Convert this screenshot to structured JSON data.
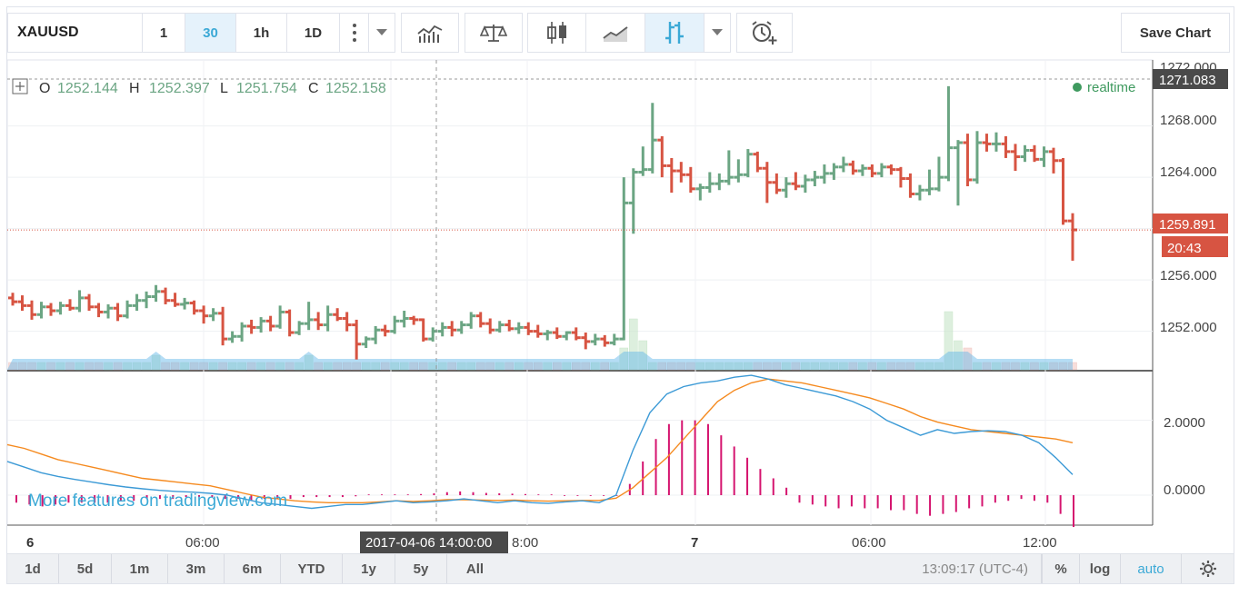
{
  "toolbar": {
    "symbol": "XAUUSD",
    "intervals": [
      {
        "label": "1",
        "active": false
      },
      {
        "label": "30",
        "active": true
      },
      {
        "label": "1h",
        "active": false
      },
      {
        "label": "1D",
        "active": false
      }
    ],
    "icons": [
      "more-vertical-icon",
      "dropdown-arrow-icon",
      "indicators-icon",
      "compare-icon",
      "candles-icon",
      "line-icon",
      "bars-icon",
      "dropdown-arrow-icon",
      "alert-icon"
    ],
    "save_label": "Save Chart"
  },
  "legend": {
    "o_label": "O",
    "o": "1252.144",
    "h_label": "H",
    "h": "1252.397",
    "l_label": "L",
    "l": "1251.754",
    "c_label": "C",
    "c": "1252.158",
    "realtime": "realtime"
  },
  "price_axis": {
    "ticks": [
      "1272.000",
      "1268.000",
      "1264.000",
      "1256.000",
      "1252.000"
    ],
    "max_marker": "1271.083",
    "last_price": "1259.891",
    "countdown": "20:43"
  },
  "macd_axis": {
    "ticks": [
      "2.0000",
      "0.0000"
    ]
  },
  "time_axis": {
    "labels": [
      "6",
      "06:00",
      "8:00",
      "7",
      "06:00",
      "12:00"
    ],
    "crosshair_label": "2017-04-06 14:00:00"
  },
  "watermark": "More features on tradingview.com",
  "bottom_bar": {
    "ranges": [
      "1d",
      "5d",
      "1m",
      "3m",
      "6m",
      "YTD",
      "1y",
      "5y",
      "All"
    ],
    "clock": "13:09:17 (UTC-4)",
    "percent": "%",
    "log": "log",
    "auto": "auto"
  },
  "colors": {
    "up": "#6ba583",
    "down": "#d75442",
    "macd_line": "#3c9ad6",
    "signal_line": "#f58a1f",
    "histogram": "#d5146f",
    "last_price_bg": "#d75442",
    "max_marker_bg": "#4a4a4a"
  },
  "chart_data": {
    "type": "ohlc-bar",
    "symbol": "XAUUSD",
    "interval": "30",
    "ylim": [
      1249,
      1273
    ],
    "bars": [
      [
        1254.6,
        1255.0,
        1254.0,
        1254.3
      ],
      [
        1254.3,
        1254.8,
        1253.6,
        1254.0
      ],
      [
        1254.0,
        1254.4,
        1252.9,
        1253.3
      ],
      [
        1253.3,
        1254.3,
        1253.0,
        1253.9
      ],
      [
        1253.9,
        1254.2,
        1253.2,
        1253.6
      ],
      [
        1253.6,
        1254.3,
        1253.3,
        1254.0
      ],
      [
        1254.0,
        1254.5,
        1253.6,
        1253.8
      ],
      [
        1253.8,
        1255.2,
        1253.5,
        1254.6
      ],
      [
        1254.6,
        1254.9,
        1253.6,
        1253.9
      ],
      [
        1253.9,
        1254.2,
        1253.1,
        1253.5
      ],
      [
        1253.5,
        1254.1,
        1253.0,
        1253.8
      ],
      [
        1253.8,
        1254.2,
        1252.8,
        1253.2
      ],
      [
        1253.2,
        1254.4,
        1253.0,
        1254.0
      ],
      [
        1254.0,
        1254.9,
        1253.6,
        1254.4
      ],
      [
        1254.4,
        1255.1,
        1253.8,
        1254.7
      ],
      [
        1254.7,
        1255.6,
        1254.3,
        1255.1
      ],
      [
        1255.1,
        1255.4,
        1254.1,
        1254.4
      ],
      [
        1254.4,
        1255.0,
        1253.9,
        1254.1
      ],
      [
        1254.1,
        1254.6,
        1253.7,
        1254.2
      ],
      [
        1254.2,
        1254.4,
        1253.3,
        1253.6
      ],
      [
        1253.6,
        1254.0,
        1252.6,
        1253.2
      ],
      [
        1253.2,
        1253.8,
        1252.8,
        1253.4
      ],
      [
        1253.4,
        1253.9,
        1250.9,
        1251.4
      ],
      [
        1251.4,
        1252.0,
        1251.1,
        1251.6
      ],
      [
        1251.6,
        1252.7,
        1251.2,
        1252.4
      ],
      [
        1252.4,
        1252.9,
        1251.8,
        1252.3
      ],
      [
        1252.3,
        1253.1,
        1251.9,
        1252.8
      ],
      [
        1252.8,
        1253.2,
        1252.0,
        1252.4
      ],
      [
        1252.4,
        1254.0,
        1252.2,
        1253.5
      ],
      [
        1253.5,
        1253.7,
        1251.6,
        1251.9
      ],
      [
        1251.9,
        1252.8,
        1251.7,
        1252.6
      ],
      [
        1252.6,
        1254.3,
        1252.1,
        1252.9
      ],
      [
        1252.9,
        1253.5,
        1252.1,
        1252.5
      ],
      [
        1252.5,
        1254.0,
        1252.0,
        1253.3
      ],
      [
        1253.3,
        1253.8,
        1252.8,
        1253.0
      ],
      [
        1253.0,
        1253.5,
        1252.0,
        1252.5
      ],
      [
        1252.5,
        1252.9,
        1249.8,
        1251.0
      ],
      [
        1251.0,
        1251.6,
        1250.7,
        1251.4
      ],
      [
        1251.4,
        1252.4,
        1251.0,
        1252.1
      ],
      [
        1252.1,
        1252.5,
        1251.6,
        1252.0
      ],
      [
        1252.0,
        1253.2,
        1251.8,
        1252.8
      ],
      [
        1252.8,
        1253.6,
        1252.3,
        1253.0
      ],
      [
        1253.0,
        1253.2,
        1252.5,
        1252.9
      ],
      [
        1252.9,
        1253.0,
        1251.2,
        1251.4
      ],
      [
        1251.4,
        1252.3,
        1251.2,
        1252.0
      ],
      [
        1252.0,
        1252.7,
        1251.6,
        1252.3
      ],
      [
        1252.3,
        1252.8,
        1251.6,
        1252.1
      ],
      [
        1252.1,
        1252.8,
        1251.8,
        1252.5
      ],
      [
        1252.5,
        1253.5,
        1252.2,
        1253.2
      ],
      [
        1253.2,
        1253.5,
        1252.3,
        1252.6
      ],
      [
        1252.6,
        1253.0,
        1251.8,
        1252.1
      ],
      [
        1252.1,
        1252.8,
        1251.9,
        1252.5
      ],
      [
        1252.5,
        1252.9,
        1252.0,
        1252.2
      ],
      [
        1252.2,
        1252.7,
        1251.8,
        1252.3
      ],
      [
        1252.3,
        1252.7,
        1251.7,
        1252.0
      ],
      [
        1252.0,
        1252.5,
        1251.5,
        1251.8
      ],
      [
        1251.8,
        1252.1,
        1251.3,
        1251.9
      ],
      [
        1251.9,
        1252.3,
        1251.4,
        1251.6
      ],
      [
        1251.6,
        1252.0,
        1251.3,
        1251.9
      ],
      [
        1251.9,
        1252.3,
        1251.3,
        1251.5
      ],
      [
        1251.5,
        1251.9,
        1250.6,
        1251.2
      ],
      [
        1251.2,
        1251.8,
        1250.9,
        1251.4
      ],
      [
        1251.4,
        1251.7,
        1250.8,
        1251.1
      ],
      [
        1251.1,
        1251.8,
        1250.9,
        1251.4
      ],
      [
        1251.4,
        1264.0,
        1251.3,
        1262.0
      ],
      [
        1262.0,
        1264.7,
        1259.6,
        1264.4
      ],
      [
        1264.4,
        1266.4,
        1264.1,
        1264.6
      ],
      [
        1264.6,
        1269.8,
        1264.3,
        1266.9
      ],
      [
        1266.9,
        1267.2,
        1264.0,
        1264.9
      ],
      [
        1264.9,
        1265.5,
        1262.8,
        1264.5
      ],
      [
        1264.5,
        1265.2,
        1263.6,
        1264.2
      ],
      [
        1264.2,
        1264.8,
        1262.8,
        1263.1
      ],
      [
        1263.1,
        1263.5,
        1262.2,
        1263.2
      ],
      [
        1263.2,
        1264.4,
        1262.8,
        1263.5
      ],
      [
        1263.5,
        1264.3,
        1263.0,
        1263.7
      ],
      [
        1263.7,
        1266.1,
        1263.4,
        1264.0
      ],
      [
        1264.0,
        1265.4,
        1263.6,
        1264.2
      ],
      [
        1264.2,
        1266.2,
        1264.0,
        1265.8
      ],
      [
        1265.8,
        1266.0,
        1264.4,
        1264.7
      ],
      [
        1264.7,
        1265.2,
        1262.0,
        1263.6
      ],
      [
        1263.6,
        1264.3,
        1262.7,
        1263.0
      ],
      [
        1263.0,
        1264.0,
        1262.4,
        1263.5
      ],
      [
        1263.5,
        1264.4,
        1263.0,
        1263.3
      ],
      [
        1263.3,
        1264.2,
        1262.8,
        1263.8
      ],
      [
        1263.8,
        1264.5,
        1263.3,
        1264.0
      ],
      [
        1264.0,
        1265.0,
        1263.5,
        1264.3
      ],
      [
        1264.3,
        1265.1,
        1263.8,
        1264.8
      ],
      [
        1264.8,
        1265.6,
        1264.4,
        1265.0
      ],
      [
        1265.0,
        1265.3,
        1264.2,
        1264.5
      ],
      [
        1264.5,
        1265.0,
        1264.1,
        1264.7
      ],
      [
        1264.7,
        1265.0,
        1264.0,
        1264.3
      ],
      [
        1264.3,
        1265.1,
        1264.0,
        1264.8
      ],
      [
        1264.8,
        1265.0,
        1264.2,
        1264.6
      ],
      [
        1264.6,
        1264.8,
        1263.2,
        1263.9
      ],
      [
        1263.9,
        1264.3,
        1262.4,
        1262.7
      ],
      [
        1262.7,
        1263.4,
        1262.2,
        1263.0
      ],
      [
        1263.0,
        1264.6,
        1262.6,
        1263.1
      ],
      [
        1263.1,
        1265.6,
        1262.9,
        1264.0
      ],
      [
        1264.0,
        1271.1,
        1263.7,
        1266.3
      ],
      [
        1266.3,
        1266.9,
        1261.8,
        1266.7
      ],
      [
        1266.7,
        1267.4,
        1263.3,
        1263.8
      ],
      [
        1263.8,
        1267.6,
        1263.5,
        1266.7
      ],
      [
        1266.7,
        1267.4,
        1266.0,
        1266.6
      ],
      [
        1266.6,
        1267.5,
        1266.0,
        1266.6
      ],
      [
        1266.6,
        1267.2,
        1265.5,
        1266.0
      ],
      [
        1266.0,
        1266.6,
        1264.5,
        1265.6
      ],
      [
        1265.6,
        1266.5,
        1265.2,
        1266.1
      ],
      [
        1266.1,
        1266.5,
        1265.2,
        1265.4
      ],
      [
        1265.4,
        1266.4,
        1264.8,
        1266.0
      ],
      [
        1266.0,
        1266.3,
        1264.3,
        1265.3
      ],
      [
        1265.3,
        1265.5,
        1260.3,
        1260.6
      ],
      [
        1260.6,
        1261.2,
        1257.5,
        1259.9
      ]
    ],
    "volume_scale": [
      0,
      10
    ],
    "volume": [
      1,
      1,
      1,
      1,
      1,
      1,
      1,
      1,
      1,
      1,
      1,
      1,
      1,
      1,
      1,
      2,
      1,
      1,
      1,
      1,
      1,
      1,
      1,
      1,
      1,
      1,
      1,
      1,
      1,
      1,
      1,
      2,
      1,
      1,
      1,
      1,
      1,
      1,
      1,
      1,
      1,
      1,
      1,
      1,
      1,
      1,
      1,
      1,
      1,
      1,
      1,
      1,
      1,
      1,
      1,
      1,
      1,
      1,
      1,
      1,
      1,
      1,
      1,
      1,
      3,
      7,
      4,
      1,
      1,
      1,
      1,
      1,
      1,
      1,
      1,
      1,
      1,
      1,
      1,
      1,
      1,
      1,
      1,
      1,
      1,
      1,
      1,
      1,
      1,
      1,
      1,
      1,
      1,
      1,
      1,
      1,
      1,
      1,
      8,
      4,
      3,
      1,
      1,
      1,
      1,
      1,
      1,
      1,
      1,
      1,
      1,
      1
    ],
    "macd": {
      "ylim": [
        -0.8,
        3.3
      ],
      "macd_line": [
        0.9,
        0.75,
        0.6,
        0.5,
        0.42,
        0.35,
        0.28,
        0.22,
        0.17,
        0.13,
        0.1,
        0.08,
        0.05,
        0.0,
        -0.1,
        -0.2,
        -0.25,
        -0.3,
        -0.35,
        -0.3,
        -0.25,
        -0.25,
        -0.2,
        -0.15,
        -0.2,
        -0.18,
        -0.15,
        -0.1,
        -0.15,
        -0.2,
        -0.15,
        -0.2,
        -0.22,
        -0.18,
        -0.15,
        -0.2,
        0.0,
        1.2,
        2.2,
        2.7,
        2.9,
        3.0,
        3.05,
        3.15,
        3.2,
        3.1,
        2.95,
        2.85,
        2.75,
        2.65,
        2.5,
        2.3,
        2.0,
        1.8,
        1.6,
        1.75,
        1.65,
        1.7,
        1.72,
        1.7,
        1.6,
        1.4,
        1.0,
        0.55
      ],
      "signal_line": [
        1.35,
        1.25,
        1.1,
        0.95,
        0.85,
        0.75,
        0.65,
        0.55,
        0.45,
        0.4,
        0.35,
        0.3,
        0.25,
        0.15,
        0.05,
        -0.05,
        -0.1,
        -0.15,
        -0.18,
        -0.2,
        -0.2,
        -0.2,
        -0.18,
        -0.15,
        -0.17,
        -0.15,
        -0.12,
        -0.12,
        -0.13,
        -0.14,
        -0.13,
        -0.15,
        -0.16,
        -0.15,
        -0.14,
        -0.14,
        -0.08,
        0.2,
        0.6,
        1.0,
        1.5,
        2.0,
        2.5,
        2.8,
        3.0,
        3.1,
        3.05,
        3.0,
        2.9,
        2.8,
        2.7,
        2.6,
        2.45,
        2.3,
        2.1,
        1.95,
        1.85,
        1.75,
        1.7,
        1.65,
        1.6,
        1.55,
        1.5,
        1.4
      ],
      "histogram": [
        -0.2,
        -0.25,
        -0.3,
        -0.25,
        -0.2,
        -0.2,
        -0.2,
        -0.2,
        -0.15,
        -0.15,
        -0.1,
        -0.1,
        -0.1,
        -0.05,
        -0.05,
        -0.05,
        -0.1,
        -0.1,
        -0.15,
        -0.1,
        -0.1,
        -0.1,
        -0.05,
        -0.05,
        -0.05,
        -0.05,
        -0.03,
        0.02,
        0.02,
        0.02,
        0.02,
        0.03,
        0.05,
        0.08,
        0.1,
        0.08,
        0.06,
        0.05,
        0.04,
        0.03,
        0.02,
        0.02,
        -0.02,
        -0.02,
        -0.02,
        -0.02,
        -0.02,
        0.3,
        0.9,
        1.5,
        1.9,
        2.0,
        2.0,
        1.9,
        1.6,
        1.3,
        1.0,
        0.7,
        0.45,
        0.2,
        -0.2,
        -0.25,
        -0.3,
        -0.35,
        -0.3,
        -0.35,
        -0.35,
        -0.4,
        -0.4,
        -0.5,
        -0.55,
        -0.5,
        -0.45,
        -0.35,
        -0.3,
        -0.2,
        -0.15,
        -0.1,
        -0.15,
        -0.2,
        -0.5,
        -0.85
      ]
    },
    "current_price_line": 1259.891,
    "max_price_line": 1271.083
  }
}
